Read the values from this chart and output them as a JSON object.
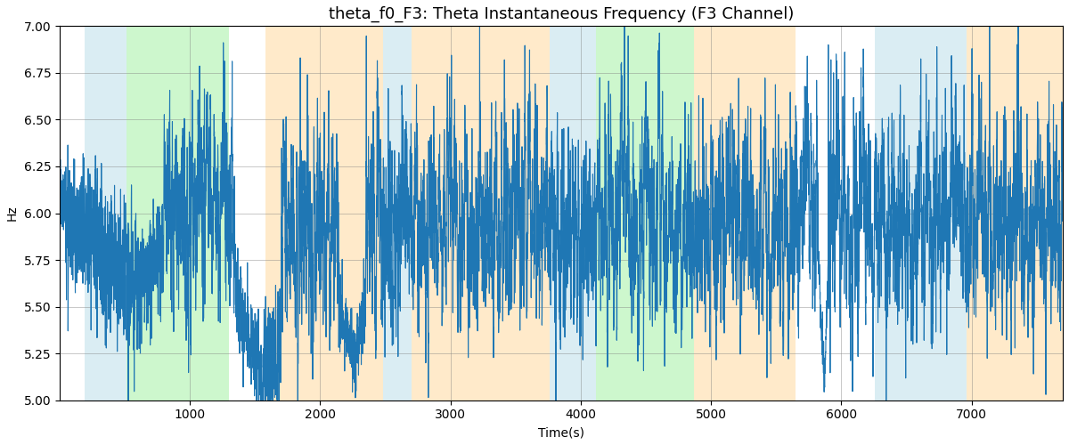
{
  "title": "theta_f0_F3: Theta Instantaneous Frequency (F3 Channel)",
  "xlabel": "Time(s)",
  "ylabel": "Hz",
  "ylim": [
    5.0,
    7.0
  ],
  "xlim": [
    0,
    7700
  ],
  "yticks": [
    5.0,
    5.25,
    5.5,
    5.75,
    6.0,
    6.25,
    6.5,
    6.75,
    7.0
  ],
  "xticks": [
    1000,
    2000,
    3000,
    4000,
    5000,
    6000,
    7000
  ],
  "background_regions": [
    {
      "xmin": 190,
      "xmax": 510,
      "color": "#add8e6",
      "alpha": 0.45
    },
    {
      "xmin": 510,
      "xmax": 1300,
      "color": "#90ee90",
      "alpha": 0.45
    },
    {
      "xmin": 1580,
      "xmax": 2480,
      "color": "#ffd9a0",
      "alpha": 0.55
    },
    {
      "xmin": 2480,
      "xmax": 2700,
      "color": "#add8e6",
      "alpha": 0.45
    },
    {
      "xmin": 2700,
      "xmax": 3760,
      "color": "#ffd9a0",
      "alpha": 0.55
    },
    {
      "xmin": 3760,
      "xmax": 4120,
      "color": "#add8e6",
      "alpha": 0.45
    },
    {
      "xmin": 4120,
      "xmax": 4870,
      "color": "#90ee90",
      "alpha": 0.45
    },
    {
      "xmin": 4870,
      "xmax": 5650,
      "color": "#ffd9a0",
      "alpha": 0.55
    },
    {
      "xmin": 6260,
      "xmax": 6960,
      "color": "#add8e6",
      "alpha": 0.45
    },
    {
      "xmin": 6960,
      "xmax": 7700,
      "color": "#ffd9a0",
      "alpha": 0.55
    }
  ],
  "line_color": "#1f77b4",
  "line_width": 0.8,
  "seed": 12345,
  "n_points": 7700,
  "base_freq": 5.97,
  "title_fontsize": 13,
  "figsize": [
    12.0,
    5.0
  ],
  "dpi": 100
}
